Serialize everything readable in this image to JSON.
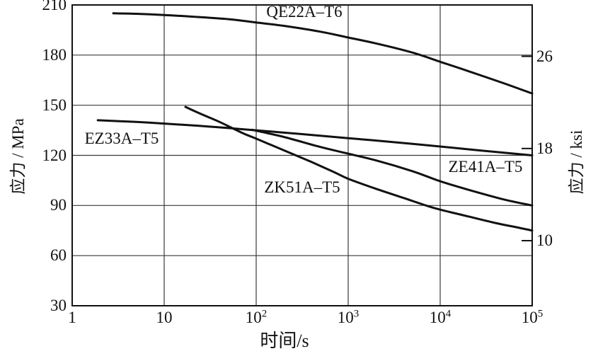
{
  "chart_data": {
    "type": "line",
    "title": "",
    "xlabel": "时间/s",
    "ylabel_left": "应力 / MPa",
    "ylabel_right": "应力 / ksi",
    "x_scale": "log",
    "xlim": [
      1,
      100000
    ],
    "ylim_mpa": [
      30,
      210
    ],
    "grid": true,
    "legend_position": "inline-labels",
    "y_ticks_mpa": [
      210,
      180,
      150,
      120,
      90,
      60,
      30
    ],
    "y_ticks_ksi": [
      26,
      18,
      10
    ],
    "ksi_to_mpa": 6.89476,
    "x_ticks": [
      {
        "value": 1,
        "base": "1",
        "exp": ""
      },
      {
        "value": 10,
        "base": "10",
        "exp": ""
      },
      {
        "value": 100,
        "base": "10",
        "exp": "2"
      },
      {
        "value": 1000,
        "base": "10",
        "exp": "3"
      },
      {
        "value": 10000,
        "base": "10",
        "exp": "4"
      },
      {
        "value": 100000,
        "base": "10",
        "exp": "5"
      }
    ],
    "series": [
      {
        "name": "QE22A–T6",
        "points": [
          [
            2.8,
            205
          ],
          [
            5,
            204.7
          ],
          [
            10,
            204
          ],
          [
            20,
            203
          ],
          [
            50,
            201.5
          ],
          [
            100,
            199.5
          ],
          [
            200,
            197.5
          ],
          [
            500,
            194
          ],
          [
            1000,
            190.5
          ],
          [
            2000,
            187
          ],
          [
            5000,
            181.5
          ],
          [
            10000,
            176
          ],
          [
            20000,
            170.5
          ],
          [
            50000,
            163
          ],
          [
            100000,
            157
          ]
        ]
      },
      {
        "name": "EZ33A–T5",
        "points": [
          [
            1.9,
            141
          ],
          [
            5,
            140
          ],
          [
            10,
            139
          ],
          [
            30,
            137.3
          ],
          [
            100,
            135
          ],
          [
            300,
            132.8
          ],
          [
            1000,
            130.3
          ],
          [
            3000,
            128
          ],
          [
            10000,
            125.3
          ],
          [
            30000,
            122.7
          ],
          [
            100000,
            120
          ]
        ]
      },
      {
        "name": "ZK51A–T5",
        "points": [
          [
            17,
            149
          ],
          [
            25,
            144.8
          ],
          [
            40,
            140
          ],
          [
            70,
            133.5
          ],
          [
            100,
            130
          ],
          [
            200,
            123
          ],
          [
            400,
            116
          ],
          [
            700,
            110
          ],
          [
            1000,
            106
          ],
          [
            2000,
            100
          ],
          [
            4000,
            94.5
          ],
          [
            7000,
            90
          ],
          [
            10000,
            87.5
          ],
          [
            20000,
            83.5
          ],
          [
            40000,
            79.5
          ],
          [
            70000,
            76.8
          ],
          [
            100000,
            75
          ]
        ]
      },
      {
        "name": "ZE41A–T5",
        "points": [
          [
            90,
            135.3
          ],
          [
            200,
            131
          ],
          [
            500,
            125
          ],
          [
            1000,
            121
          ],
          [
            2000,
            117
          ],
          [
            5000,
            110.5
          ],
          [
            10000,
            104.5
          ],
          [
            20000,
            99.5
          ],
          [
            50000,
            93.5
          ],
          [
            100000,
            90
          ]
        ]
      }
    ]
  },
  "colors": {
    "curve": "#111111",
    "grid": "#3a3a3a",
    "border": "#111111",
    "background": "#ffffff"
  }
}
